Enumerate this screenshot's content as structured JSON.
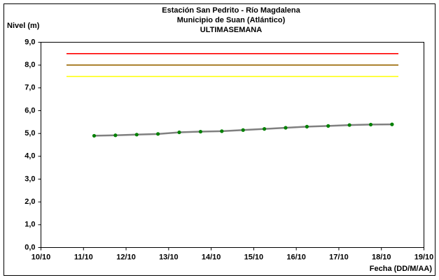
{
  "chart_data": {
    "type": "line",
    "title": [
      "Estación San Pedrito - Río Magdalena",
      "Municipio de Suan (Atlántico)",
      "ULTIMASEMANA"
    ],
    "y_label": "Nivel (m)",
    "x_label": "Fecha (DD/M/AA)",
    "xlim": [
      10,
      19
    ],
    "xticks": [
      {
        "value": 10,
        "label": "10/10"
      },
      {
        "value": 11,
        "label": "11/10"
      },
      {
        "value": 12,
        "label": "12/10"
      },
      {
        "value": 13,
        "label": "13/10"
      },
      {
        "value": 14,
        "label": "14/10"
      },
      {
        "value": 15,
        "label": "15/10"
      },
      {
        "value": 16,
        "label": "16/10"
      },
      {
        "value": 17,
        "label": "17/10"
      },
      {
        "value": 18,
        "label": "18/10"
      },
      {
        "value": 19,
        "label": "19/10"
      }
    ],
    "ylim": [
      0,
      9
    ],
    "yticks": [
      {
        "value": 0,
        "label": "0,0"
      },
      {
        "value": 1,
        "label": "1,0"
      },
      {
        "value": 2,
        "label": "2,0"
      },
      {
        "value": 3,
        "label": "3,0"
      },
      {
        "value": 4,
        "label": "4,0"
      },
      {
        "value": 5,
        "label": "5,0"
      },
      {
        "value": 6,
        "label": "6,0"
      },
      {
        "value": 7,
        "label": "7,0"
      },
      {
        "value": 8,
        "label": "8,0"
      },
      {
        "value": 9,
        "label": "9,0"
      }
    ],
    "series": [
      {
        "color": "#ff0000",
        "x": [
          10.6,
          18.4
        ],
        "values": [
          8.5,
          8.5
        ]
      },
      {
        "color": "#996600",
        "x": [
          10.6,
          18.4
        ],
        "values": [
          8.0,
          8.0
        ]
      },
      {
        "color": "#ffff00",
        "x": [
          10.6,
          18.4
        ],
        "values": [
          7.5,
          7.5
        ]
      },
      {
        "color": "#808080",
        "marker_color": "#008000",
        "x": [
          11.25,
          11.75,
          12.25,
          12.75,
          13.25,
          13.75,
          14.25,
          14.75,
          15.25,
          15.75,
          16.25,
          16.75,
          17.25,
          17.75,
          18.25
        ],
        "values": [
          4.9,
          4.92,
          4.95,
          4.98,
          5.05,
          5.08,
          5.1,
          5.15,
          5.2,
          5.25,
          5.3,
          5.33,
          5.37,
          5.39,
          5.4
        ]
      }
    ]
  }
}
